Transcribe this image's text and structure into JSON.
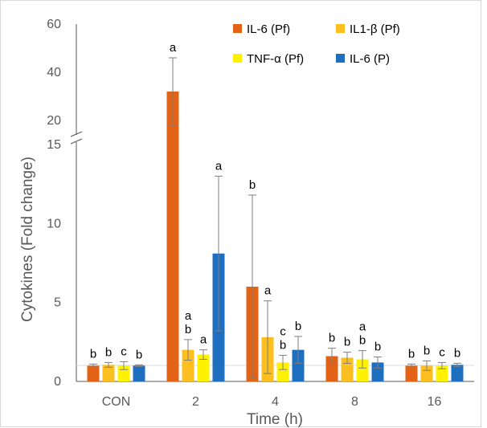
{
  "chart_data": {
    "type": "bar",
    "title": "",
    "xlabel": "Time (h)",
    "ylabel": "Cytokines (Fold change)",
    "categories": [
      "CON",
      "2",
      "4",
      "8",
      "16"
    ],
    "y_axis": {
      "broken": true,
      "lower_segment": {
        "range": [
          0,
          15
        ],
        "ticks": [
          "0",
          "5",
          "10",
          "15"
        ],
        "tick_values": [
          0,
          5,
          10,
          15
        ]
      },
      "upper_segment": {
        "range": [
          15,
          60
        ],
        "ticks": [
          "20",
          "40",
          "60"
        ],
        "tick_values": [
          20,
          40,
          60
        ]
      }
    },
    "legend_position": "top-right",
    "grid": false,
    "series": [
      {
        "name": "IL-6 (Pf)",
        "color": "#E26316",
        "values": [
          1.0,
          32.0,
          6.0,
          1.6,
          1.0
        ],
        "errors": [
          0.1,
          14.0,
          5.8,
          0.5,
          0.1
        ],
        "labels": [
          "b",
          "a",
          "b",
          "b",
          "b"
        ]
      },
      {
        "name": "IL1-β (Pf)",
        "color": "#FDBF1F",
        "values": [
          1.05,
          2.0,
          2.8,
          1.5,
          1.0
        ],
        "errors": [
          0.15,
          0.65,
          2.3,
          0.35,
          0.3
        ],
        "labels": [
          "b",
          "a\nb",
          "a",
          "b",
          "b"
        ]
      },
      {
        "name": "TNF-α (Pf)",
        "color": "#FFF200",
        "values": [
          1.0,
          1.7,
          1.2,
          1.4,
          1.0
        ],
        "errors": [
          0.25,
          0.3,
          0.45,
          0.55,
          0.2
        ],
        "labels": [
          "c",
          "a",
          "c\nb",
          "a\nb",
          "c"
        ]
      },
      {
        "name": "IL-6 (P)",
        "color": "#1F6FC0",
        "values": [
          1.0,
          8.1,
          2.0,
          1.2,
          1.05
        ],
        "errors": [
          0.05,
          4.9,
          0.85,
          0.35,
          0.1
        ],
        "labels": [
          "b",
          "a",
          "b",
          "b",
          "b"
        ]
      }
    ]
  }
}
